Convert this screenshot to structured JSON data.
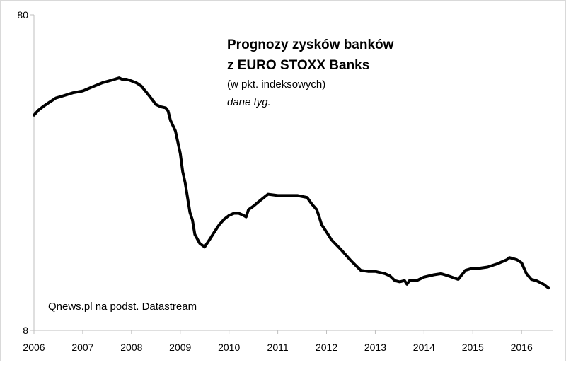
{
  "chart_data": {
    "type": "line",
    "title": "Prognozy zysków banków",
    "title_line2": "z EURO STOXX Banks",
    "subtitle": "(w pkt. indeksowych)",
    "note": "dane tyg.",
    "source": "Qnews.pl na podst. Datastream",
    "xlabel": "",
    "ylabel": "",
    "y_scale": "log",
    "ylim": [
      8,
      80
    ],
    "y_ticks": [
      8,
      80
    ],
    "xlim": [
      2006,
      2016.65
    ],
    "x_ticks": [
      2006,
      2007,
      2008,
      2009,
      2010,
      2011,
      2012,
      2013,
      2014,
      2015,
      2016
    ],
    "grid": false,
    "line_color": "#000000",
    "series": [
      {
        "x": [
          2006.0,
          2006.1,
          2006.2,
          2006.3,
          2006.45,
          2006.6,
          2006.8,
          2007.0,
          2007.2,
          2007.4,
          2007.6,
          2007.75,
          2007.8,
          2007.9,
          2008.0,
          2008.1,
          2008.2,
          2008.3,
          2008.4,
          2008.5,
          2008.6,
          2008.7,
          2008.75,
          2008.8,
          2008.9,
          2009.0,
          2009.05,
          2009.1,
          2009.2,
          2009.25,
          2009.3,
          2009.4,
          2009.5,
          2009.6,
          2009.7,
          2009.8,
          2009.9,
          2010.0,
          2010.1,
          2010.2,
          2010.3,
          2010.35,
          2010.4,
          2010.5,
          2010.6,
          2010.7,
          2010.8,
          2011.0,
          2011.2,
          2011.4,
          2011.6,
          2011.7,
          2011.8,
          2011.85,
          2011.9,
          2012.0,
          2012.1,
          2012.3,
          2012.5,
          2012.7,
          2012.85,
          2013.0,
          2013.2,
          2013.3,
          2013.4,
          2013.5,
          2013.6,
          2013.65,
          2013.7,
          2013.85,
          2014.0,
          2014.2,
          2014.35,
          2014.5,
          2014.7,
          2014.85,
          2015.0,
          2015.15,
          2015.3,
          2015.5,
          2015.7,
          2015.75,
          2015.9,
          2016.0,
          2016.1,
          2016.2,
          2016.3,
          2016.45,
          2016.55
        ],
        "values": [
          38.5,
          40.0,
          41.1,
          42.1,
          43.6,
          44.3,
          45.3,
          45.9,
          47.3,
          48.7,
          49.7,
          50.5,
          50.0,
          50.0,
          49.4,
          48.7,
          47.6,
          45.6,
          43.6,
          41.6,
          40.9,
          40.6,
          39.7,
          37.0,
          34.3,
          29.1,
          25.5,
          23.5,
          18.9,
          17.9,
          16.1,
          15.1,
          14.7,
          15.5,
          16.4,
          17.3,
          18.0,
          18.5,
          18.8,
          18.8,
          18.5,
          18.3,
          19.3,
          19.8,
          20.4,
          21.0,
          21.6,
          21.4,
          21.4,
          21.4,
          21.1,
          20.1,
          19.3,
          18.3,
          17.3,
          16.4,
          15.5,
          14.4,
          13.3,
          12.4,
          12.3,
          12.3,
          12.1,
          11.9,
          11.5,
          11.4,
          11.5,
          11.2,
          11.5,
          11.5,
          11.8,
          12.0,
          12.1,
          11.9,
          11.6,
          12.4,
          12.6,
          12.6,
          12.7,
          13.0,
          13.4,
          13.6,
          13.4,
          13.1,
          12.1,
          11.6,
          11.5,
          11.2,
          10.9
        ]
      }
    ]
  }
}
